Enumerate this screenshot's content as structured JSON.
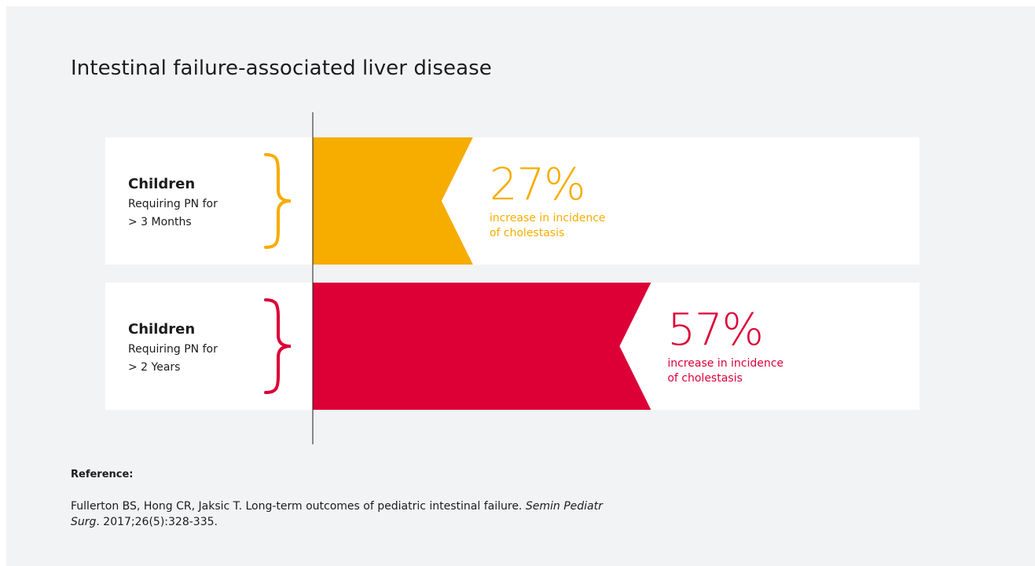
{
  "chart_data": {
    "type": "bar",
    "orientation": "horizontal",
    "title": "Intestinal failure-associated liver disease",
    "categories": [
      {
        "heading": "Children",
        "line1": "Requiring PN for",
        "line2": "> 3 Months"
      },
      {
        "heading": "Children",
        "line1": "Requiring PN for",
        "line2": "> 2 Years"
      }
    ],
    "values": [
      27,
      57
    ],
    "value_labels": [
      "27%",
      "57%"
    ],
    "caption_line1": "increase in incidence",
    "caption_line2": "of cholestasis",
    "colors": [
      "#f7ac00",
      "#dc0036"
    ],
    "xlim": [
      0,
      100
    ],
    "grid": false,
    "legend": "none"
  },
  "reference": {
    "heading": "Reference:",
    "authors": "Fullerton BS, Hong CR, Jaksic T. Long-term outcomes of pediatric intestinal failure.",
    "journal": "Semin Pediatr Surg",
    "citation": ". 2017;26(5):328-335."
  }
}
